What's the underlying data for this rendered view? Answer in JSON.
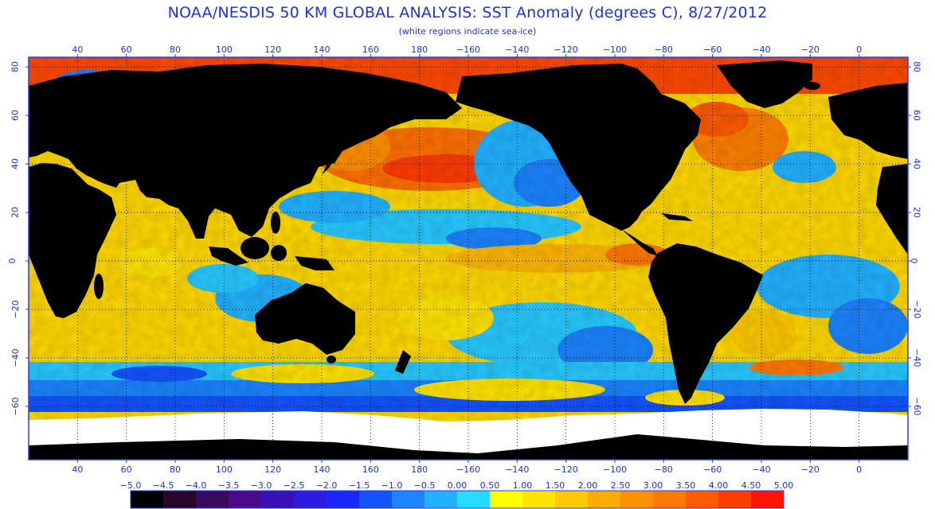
{
  "header": {
    "title": "NOAA/NESDIS 50 KM GLOBAL ANALYSIS: SST Anomaly (degrees C), 8/27/2012",
    "subtitle": "(white regions indicate sea-ice)"
  },
  "map": {
    "top_lon_labels": [
      "40",
      "60",
      "80",
      "100",
      "120",
      "140",
      "160",
      "180",
      "−160",
      "−140",
      "−120",
      "−100",
      "−80",
      "−60",
      "−40",
      "−20",
      "0"
    ],
    "bottom_lon_labels": [
      "40",
      "60",
      "80",
      "100",
      "120",
      "140",
      "160",
      "180",
      "−160",
      "−140",
      "−120",
      "−100",
      "−80",
      "−60",
      "−40",
      "−20",
      "0"
    ],
    "lat_labels": [
      "80",
      "60",
      "40",
      "20",
      "0",
      "−20",
      "−40",
      "−60"
    ],
    "colors": {
      "land": "#000000",
      "ice": "#ffffff",
      "frame": "#2a3ce0",
      "grid": "#000000"
    }
  },
  "colorbar": {
    "labels": [
      "−5.0",
      "−4.5",
      "−4.0",
      "−3.5",
      "−3.0",
      "−2.5",
      "−2.0",
      "−1.5",
      "−1.0",
      "−0.5",
      "0.00",
      "0.50",
      "1.00",
      "1.50",
      "2.00",
      "2.50",
      "3.00",
      "3.50",
      "4.00",
      "4.50",
      "5.00"
    ],
    "colors": [
      "#000000",
      "#2a0628",
      "#3a0a5c",
      "#4a0a8a",
      "#3812b4",
      "#2c1ce0",
      "#1a28ff",
      "#1454ff",
      "#1c84ff",
      "#22b2ff",
      "#28dcff",
      "#ffff00",
      "#ffe400",
      "#ffc800",
      "#ffac00",
      "#ff9000",
      "#ff7800",
      "#ff5a00",
      "#ff3c00",
      "#ff1400"
    ]
  }
}
